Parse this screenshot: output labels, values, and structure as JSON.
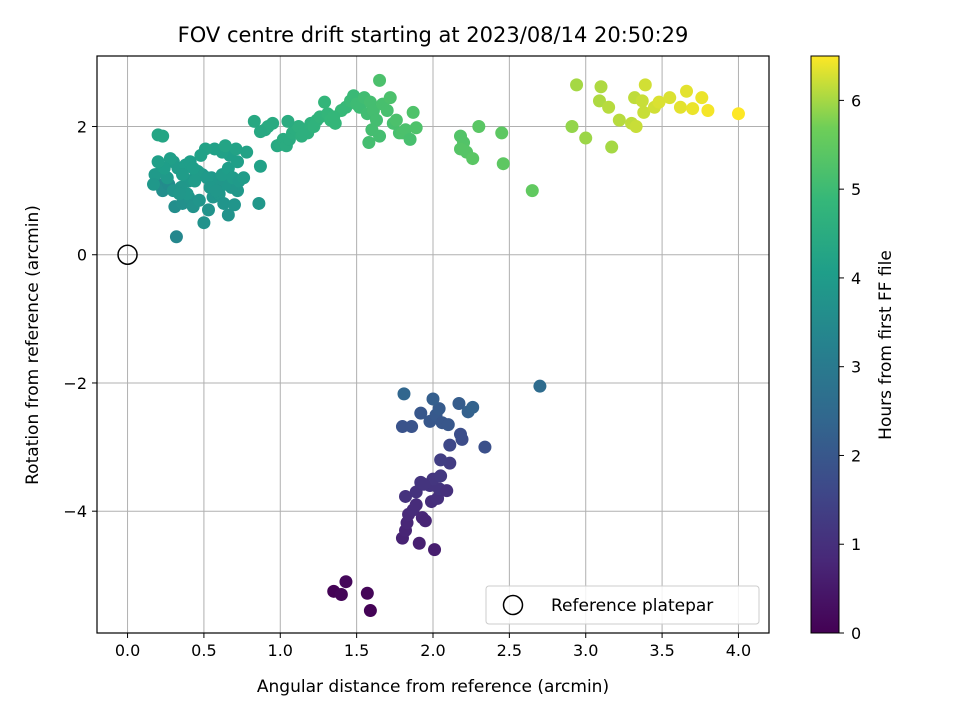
{
  "chart_data": {
    "type": "scatter",
    "title": "FOV centre drift starting at 2023/08/14 20:50:29",
    "xlabel": "Angular distance from reference (arcmin)",
    "ylabel": "Rotation from reference (arcmin)",
    "xlim": [
      -0.2,
      4.2
    ],
    "ylim": [
      -5.9,
      3.1
    ],
    "x_ticks": [
      0.0,
      0.5,
      1.0,
      1.5,
      2.0,
      2.5,
      3.0,
      3.5,
      4.0
    ],
    "x_tick_labels": [
      "0.0",
      "0.5",
      "1.0",
      "1.5",
      "2.0",
      "2.5",
      "3.0",
      "3.5",
      "4.0"
    ],
    "y_ticks": [
      2,
      0,
      -2,
      -4
    ],
    "y_tick_labels": [
      "2",
      "0",
      "−2",
      "−4"
    ],
    "grid": true,
    "legend": {
      "placement": "lower-right",
      "label": "Reference platepar"
    },
    "reference_point": {
      "x": 0.0,
      "y": 0.0
    },
    "colorbar": {
      "label": "Hours from first FF file",
      "range": [
        0,
        6.5
      ],
      "ticks": [
        0,
        1,
        2,
        3,
        4,
        5,
        6
      ],
      "tick_labels": [
        "0",
        "1",
        "2",
        "3",
        "4",
        "5",
        "6"
      ],
      "colormap": "viridis"
    },
    "points": [
      [
        1.35,
        -5.25,
        0.05
      ],
      [
        1.4,
        -5.3,
        0.1
      ],
      [
        1.43,
        -5.1,
        0.15
      ],
      [
        1.57,
        -5.28,
        0.1
      ],
      [
        1.59,
        -5.55,
        0.05
      ],
      [
        2.01,
        -4.6,
        0.6
      ],
      [
        1.91,
        -4.5,
        0.65
      ],
      [
        1.8,
        -4.42,
        0.7
      ],
      [
        1.82,
        -4.3,
        0.75
      ],
      [
        1.83,
        -4.18,
        0.8
      ],
      [
        1.84,
        -4.05,
        0.85
      ],
      [
        1.87,
        -3.98,
        0.9
      ],
      [
        1.89,
        -3.9,
        0.9
      ],
      [
        1.93,
        -4.1,
        0.8
      ],
      [
        1.95,
        -4.15,
        0.75
      ],
      [
        1.99,
        -3.85,
        0.95
      ],
      [
        2.03,
        -3.8,
        1.0
      ],
      [
        1.82,
        -3.77,
        1.05
      ],
      [
        1.89,
        -3.7,
        1.05
      ],
      [
        1.92,
        -3.55,
        1.1
      ],
      [
        1.98,
        -3.6,
        1.1
      ],
      [
        2.04,
        -3.65,
        1.1
      ],
      [
        2.09,
        -3.68,
        1.0
      ],
      [
        2.0,
        -3.5,
        1.15
      ],
      [
        1.94,
        -3.58,
        1.12
      ],
      [
        2.05,
        -3.45,
        1.2
      ],
      [
        2.11,
        -3.25,
        1.3
      ],
      [
        2.05,
        -3.2,
        1.35
      ],
      [
        2.11,
        -2.97,
        1.6
      ],
      [
        2.19,
        -2.88,
        1.7
      ],
      [
        2.18,
        -2.8,
        1.75
      ],
      [
        2.34,
        -3.0,
        1.8
      ],
      [
        1.8,
        -2.68,
        1.9
      ],
      [
        1.86,
        -2.68,
        1.9
      ],
      [
        1.92,
        -2.47,
        2.0
      ],
      [
        1.98,
        -2.6,
        2.0
      ],
      [
        2.02,
        -2.5,
        2.05
      ],
      [
        2.04,
        -2.4,
        2.1
      ],
      [
        2.06,
        -2.62,
        2.0
      ],
      [
        2.1,
        -2.65,
        2.0
      ],
      [
        2.0,
        -2.25,
        2.2
      ],
      [
        2.17,
        -2.32,
        2.15
      ],
      [
        2.23,
        -2.45,
        2.25
      ],
      [
        2.26,
        -2.38,
        2.3
      ],
      [
        1.81,
        -2.17,
        2.4
      ],
      [
        2.7,
        -2.05,
        2.55
      ],
      [
        0.32,
        0.28,
        3.4
      ],
      [
        0.2,
        1.1,
        3.5
      ],
      [
        0.23,
        1.0,
        3.6
      ],
      [
        0.27,
        1.1,
        3.55
      ],
      [
        0.31,
        0.75,
        3.6
      ],
      [
        0.36,
        0.8,
        3.65
      ],
      [
        0.4,
        0.9,
        3.7
      ],
      [
        0.43,
        0.75,
        3.75
      ],
      [
        0.47,
        0.85,
        3.8
      ],
      [
        0.5,
        0.5,
        3.7
      ],
      [
        0.53,
        0.7,
        3.75
      ],
      [
        0.56,
        0.9,
        3.8
      ],
      [
        0.6,
        0.95,
        3.85
      ],
      [
        0.63,
        0.8,
        3.8
      ],
      [
        0.66,
        0.62,
        3.75
      ],
      [
        0.7,
        0.78,
        3.8
      ],
      [
        0.72,
        1.0,
        3.9
      ],
      [
        0.68,
        1.05,
        3.85
      ],
      [
        0.64,
        1.1,
        3.9
      ],
      [
        0.59,
        1.15,
        3.85
      ],
      [
        0.55,
        1.2,
        3.9
      ],
      [
        0.49,
        1.25,
        3.9
      ],
      [
        0.44,
        1.2,
        3.95
      ],
      [
        0.4,
        1.15,
        3.9
      ],
      [
        0.35,
        1.05,
        3.85
      ],
      [
        0.3,
        1.0,
        3.8
      ],
      [
        0.26,
        1.2,
        3.95
      ],
      [
        0.22,
        1.3,
        3.95
      ],
      [
        0.18,
        1.25,
        3.95
      ],
      [
        0.17,
        1.1,
        3.9
      ],
      [
        0.3,
        1.45,
        4.0
      ],
      [
        0.33,
        1.35,
        4.0
      ],
      [
        0.38,
        1.4,
        4.05
      ],
      [
        0.41,
        1.45,
        4.05
      ],
      [
        0.46,
        1.3,
        4.0
      ],
      [
        0.52,
        1.2,
        3.95
      ],
      [
        0.54,
        1.05,
        3.9
      ],
      [
        0.58,
        1.0,
        3.85
      ],
      [
        0.62,
        1.25,
        4.0
      ],
      [
        0.66,
        1.35,
        4.05
      ],
      [
        0.69,
        1.2,
        4.0
      ],
      [
        0.73,
        1.15,
        3.95
      ],
      [
        0.76,
        1.2,
        4.0
      ],
      [
        0.72,
        1.45,
        4.1
      ],
      [
        0.67,
        1.55,
        4.1
      ],
      [
        0.62,
        1.6,
        4.15
      ],
      [
        0.57,
        1.65,
        4.15
      ],
      [
        0.51,
        1.65,
        4.2
      ],
      [
        0.48,
        1.55,
        4.15
      ],
      [
        0.43,
        1.35,
        4.05
      ],
      [
        0.36,
        1.25,
        4.0
      ],
      [
        0.28,
        1.5,
        4.1
      ],
      [
        0.24,
        1.35,
        4.05
      ],
      [
        0.2,
        1.45,
        4.1
      ],
      [
        0.86,
        0.8,
        3.85
      ],
      [
        0.87,
        1.38,
        4.15
      ],
      [
        0.78,
        1.6,
        4.2
      ],
      [
        0.71,
        1.65,
        4.2
      ],
      [
        0.64,
        1.7,
        4.25
      ],
      [
        0.2,
        1.87,
        4.3
      ],
      [
        0.23,
        1.85,
        4.3
      ],
      [
        0.44,
        1.15,
        4.0
      ],
      [
        0.39,
        0.95,
        3.9
      ],
      [
        0.34,
        0.95,
        3.85
      ],
      [
        0.9,
        1.95,
        4.4
      ],
      [
        0.92,
        2.0,
        4.45
      ],
      [
        0.95,
        2.05,
        4.45
      ],
      [
        0.98,
        1.7,
        4.4
      ],
      [
        1.0,
        1.72,
        4.45
      ],
      [
        1.02,
        1.8,
        4.5
      ],
      [
        1.04,
        1.7,
        4.5
      ],
      [
        1.06,
        1.8,
        4.5
      ],
      [
        1.08,
        1.9,
        4.55
      ],
      [
        1.1,
        1.95,
        4.55
      ],
      [
        1.12,
        2.0,
        4.6
      ],
      [
        1.14,
        1.85,
        4.6
      ],
      [
        1.16,
        1.95,
        4.6
      ],
      [
        1.18,
        1.9,
        4.65
      ],
      [
        1.2,
        2.05,
        4.65
      ],
      [
        1.22,
        2.0,
        4.7
      ],
      [
        1.24,
        2.1,
        4.7
      ],
      [
        1.26,
        2.15,
        4.75
      ],
      [
        1.29,
        2.38,
        4.8
      ],
      [
        1.31,
        2.2,
        4.8
      ],
      [
        1.33,
        2.1,
        4.85
      ],
      [
        1.36,
        2.05,
        4.85
      ],
      [
        1.4,
        2.25,
        4.9
      ],
      [
        1.43,
        2.3,
        4.9
      ],
      [
        1.46,
        2.4,
        4.95
      ],
      [
        1.48,
        2.48,
        4.95
      ],
      [
        1.5,
        2.35,
        5.0
      ],
      [
        1.52,
        2.3,
        5.0
      ],
      [
        1.55,
        2.45,
        5.05
      ],
      [
        1.57,
        2.2,
        5.05
      ],
      [
        1.59,
        2.38,
        5.1
      ],
      [
        1.61,
        2.25,
        5.1
      ],
      [
        1.63,
        2.1,
        5.1
      ],
      [
        1.65,
        2.72,
        5.2
      ],
      [
        1.67,
        2.35,
        5.15
      ],
      [
        1.7,
        2.25,
        5.15
      ],
      [
        1.72,
        2.45,
        5.2
      ],
      [
        1.74,
        2.05,
        5.15
      ],
      [
        1.76,
        2.1,
        5.2
      ],
      [
        1.78,
        1.9,
        5.15
      ],
      [
        1.8,
        1.9,
        5.2
      ],
      [
        1.82,
        1.95,
        5.2
      ],
      [
        1.85,
        1.8,
        5.15
      ],
      [
        1.87,
        2.22,
        5.25
      ],
      [
        1.89,
        1.98,
        5.25
      ],
      [
        1.58,
        1.75,
        5.1
      ],
      [
        1.6,
        1.95,
        5.1
      ],
      [
        1.65,
        1.85,
        5.1
      ],
      [
        0.83,
        2.08,
        4.4
      ],
      [
        0.87,
        1.92,
        4.4
      ],
      [
        1.05,
        2.08,
        4.5
      ],
      [
        1.15,
        1.88,
        4.6
      ],
      [
        1.35,
        2.15,
        4.85
      ],
      [
        2.18,
        1.85,
        5.3
      ],
      [
        2.2,
        1.75,
        5.3
      ],
      [
        2.18,
        1.65,
        5.35
      ],
      [
        2.22,
        1.6,
        5.35
      ],
      [
        2.26,
        1.5,
        5.4
      ],
      [
        2.3,
        2.0,
        5.4
      ],
      [
        2.45,
        1.9,
        5.45
      ],
      [
        2.46,
        1.42,
        5.45
      ],
      [
        2.65,
        1.0,
        5.5
      ],
      [
        2.91,
        2.0,
        5.9
      ],
      [
        2.94,
        2.65,
        6.0
      ],
      [
        3.0,
        1.82,
        5.95
      ],
      [
        3.09,
        2.4,
        6.05
      ],
      [
        3.1,
        2.62,
        6.05
      ],
      [
        3.15,
        2.3,
        6.1
      ],
      [
        3.17,
        1.68,
        6.0
      ],
      [
        3.22,
        2.1,
        6.1
      ],
      [
        3.3,
        2.05,
        6.15
      ],
      [
        3.32,
        2.45,
        6.15
      ],
      [
        3.33,
        2.0,
        6.2
      ],
      [
        3.37,
        2.4,
        6.2
      ],
      [
        3.39,
        2.65,
        6.25
      ],
      [
        3.38,
        2.22,
        6.2
      ],
      [
        3.45,
        2.3,
        6.25
      ],
      [
        3.48,
        2.38,
        6.3
      ],
      [
        3.55,
        2.45,
        6.3
      ],
      [
        3.62,
        2.3,
        6.35
      ],
      [
        3.66,
        2.55,
        6.35
      ],
      [
        3.7,
        2.28,
        6.4
      ],
      [
        3.76,
        2.45,
        6.4
      ],
      [
        3.8,
        2.25,
        6.45
      ],
      [
        4.0,
        2.2,
        6.5
      ]
    ]
  }
}
